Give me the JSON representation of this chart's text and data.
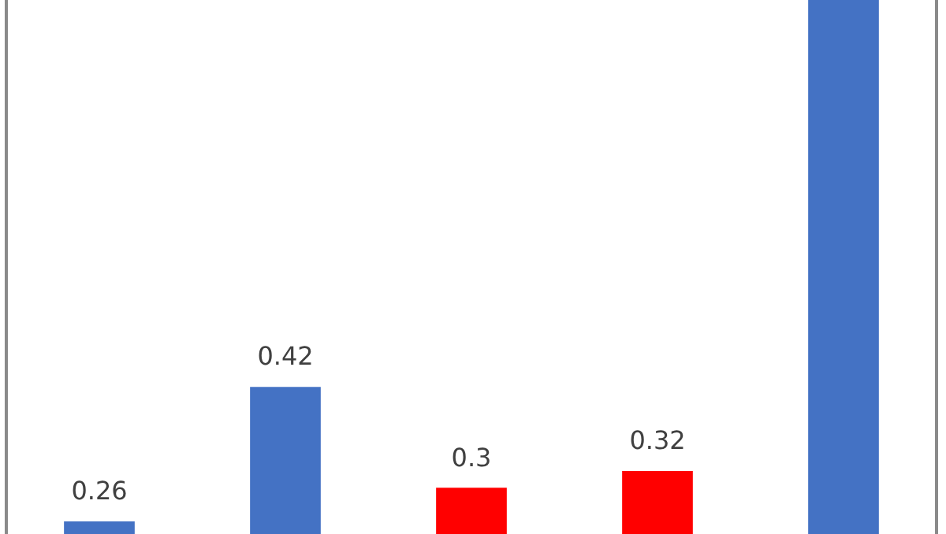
{
  "chart_data": {
    "type": "bar",
    "categories": [
      null,
      null,
      null,
      null,
      null
    ],
    "values": [
      0.26,
      0.42,
      0.3,
      0.32,
      0.88
    ],
    "colors": [
      "#4472c4",
      "#4472c4",
      "#ff0000",
      "#ff0000",
      "#4472c4"
    ],
    "value_labels": [
      "0.26",
      "0.42",
      "0.3",
      "0.32",
      null
    ],
    "ylim": [
      0.245,
      0.88
    ],
    "grid": false,
    "legend": false
  }
}
